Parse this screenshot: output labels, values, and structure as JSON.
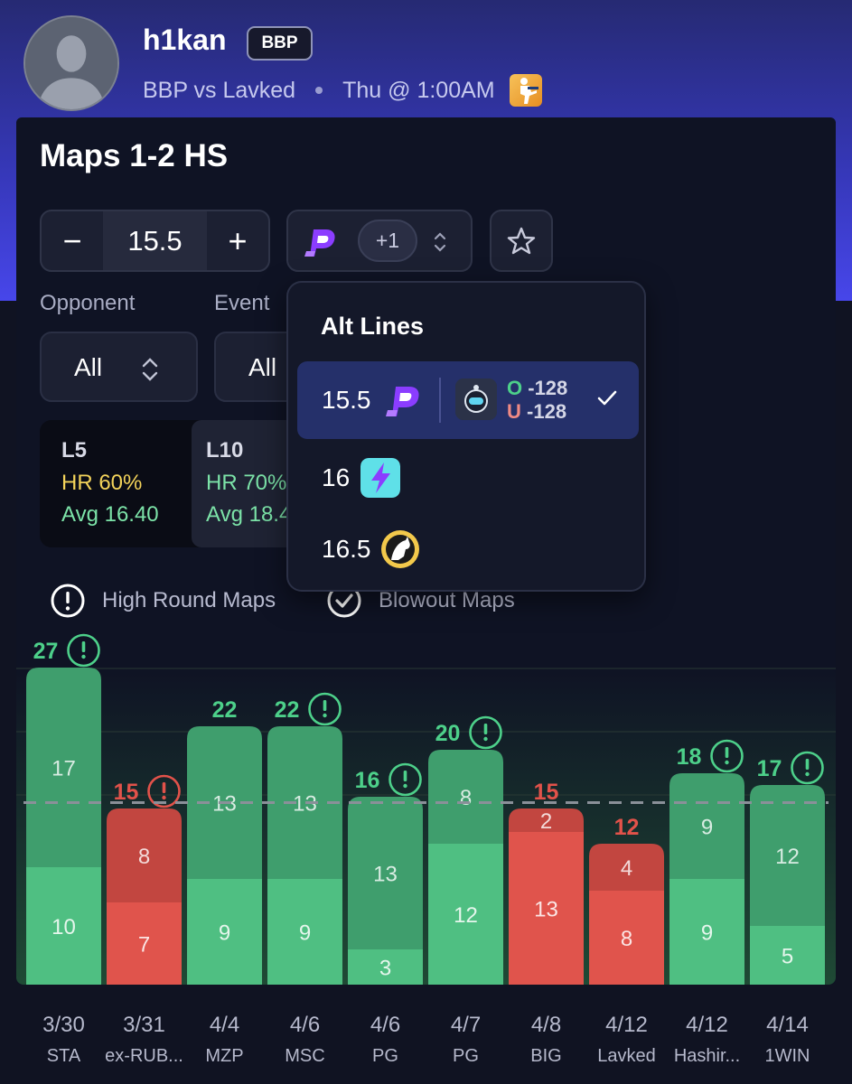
{
  "header": {
    "username": "h1kan",
    "team_badge": "BBP",
    "matchup": "BBP vs Lavked",
    "time": "Thu @ 1:00AM",
    "game_icon": "counter-strike-icon"
  },
  "prop": {
    "title": "Maps 1-2 HS",
    "line_value": "15.5",
    "minus_label": "−",
    "plus_label": "+",
    "book_extra": "+1",
    "book_icon": "prizepicks-logo-icon",
    "favorite_icon": "star-icon"
  },
  "filters": {
    "opponent_label": "Opponent",
    "opponent_value": "All",
    "event_label": "Event",
    "event_value": "All"
  },
  "stats": [
    {
      "label": "L5",
      "hr": "HR 60%",
      "avg": "Avg 16.40",
      "hr_color": "#f3d35a"
    },
    {
      "label": "L10",
      "hr": "HR 70%",
      "avg": "Avg 18.4",
      "hr_color": "#7ce3a8"
    }
  ],
  "legend": {
    "high_round": "High Round Maps",
    "blowout": "Blowout Maps"
  },
  "alt_lines": {
    "title": "Alt Lines",
    "rows": [
      {
        "line": "15.5",
        "book_icon": "prizepicks-logo-icon",
        "odds_book_icon": "robot-book-icon",
        "over_prefix": "O",
        "over_odds": "-128",
        "under_prefix": "U",
        "under_odds": "-128",
        "selected": true
      },
      {
        "line": "16",
        "book_icon": "lightning-book-icon",
        "selected": false
      },
      {
        "line": "16.5",
        "book_icon": "horse-book-icon",
        "selected": false
      }
    ]
  },
  "colors": {
    "green": "#4fbf82",
    "green_dark": "#3f9e6d",
    "red": "#e0544c",
    "red_dark": "#c24640",
    "green_text": "#4dd08a",
    "red_text": "#e2524a"
  },
  "chart_data": {
    "type": "bar",
    "stacked": true,
    "line": 15.5,
    "ylim": [
      0,
      27
    ],
    "categories": [
      "3/30",
      "3/31",
      "4/4",
      "4/6",
      "4/6",
      "4/7",
      "4/8",
      "4/12",
      "4/12",
      "4/14"
    ],
    "opponents": [
      "STA",
      "ex-RUB...",
      "MZP",
      "MSC",
      "PG",
      "PG",
      "BIG",
      "Lavked",
      "Hashir...",
      "1WIN"
    ],
    "series": [
      {
        "values": [
          10,
          7,
          9,
          9,
          3,
          12,
          13,
          8,
          9,
          5
        ]
      },
      {
        "values": [
          17,
          8,
          13,
          13,
          13,
          8,
          2,
          4,
          9,
          12
        ]
      }
    ],
    "totals": [
      27,
      15,
      22,
      22,
      16,
      20,
      15,
      12,
      18,
      17
    ],
    "high_round_flag": [
      true,
      true,
      false,
      true,
      true,
      true,
      false,
      false,
      true,
      true
    ]
  }
}
